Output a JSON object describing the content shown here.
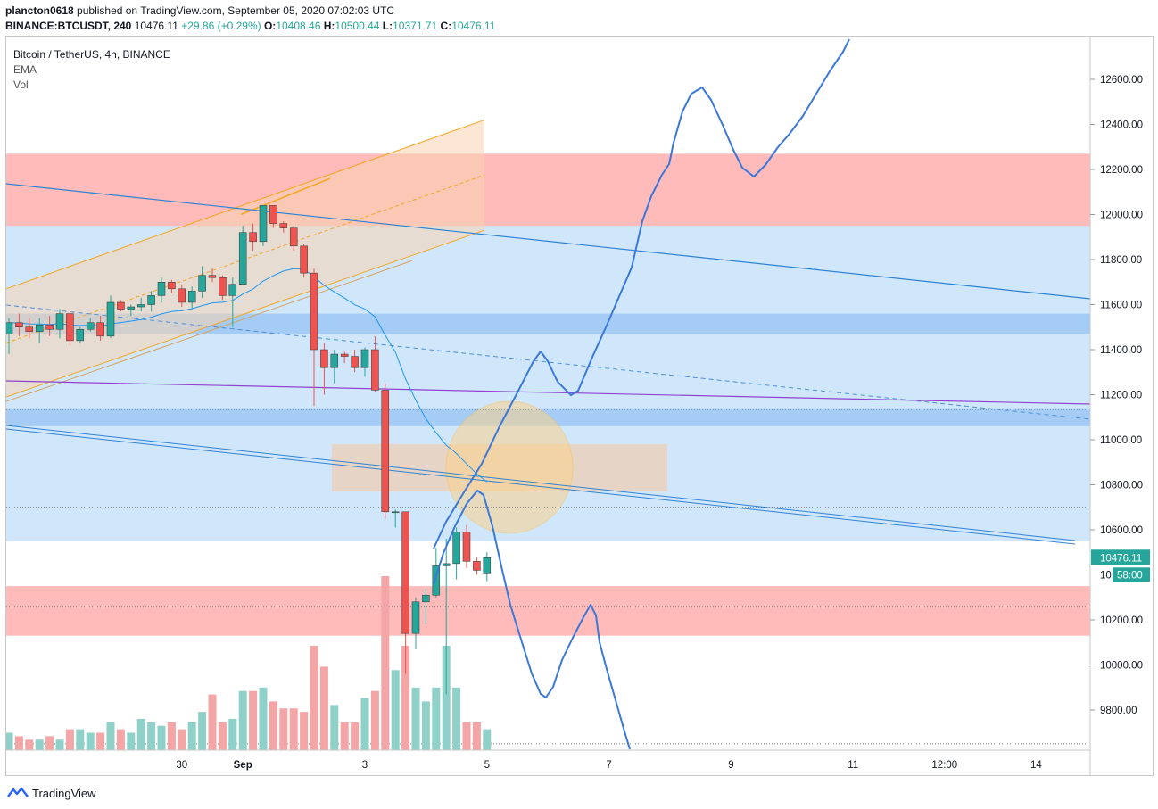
{
  "header": {
    "author": "plancton0618",
    "published": "published on TradingView.com, September 05, 2020 07:02:03 UTC",
    "symbol": "BINANCE:BTCUSDT, 240",
    "price": "10476.11",
    "change": "+29.86 (+0.29%)",
    "o_label": "O:",
    "o_value": "10408.46",
    "h_label": "H:",
    "h_value": "10500.44",
    "l_label": "L:",
    "l_value": "10371.71",
    "c_label": "C:",
    "c_value": "10476.11"
  },
  "legend": {
    "title": "Bitcoin / TetherUS, 4h, BINANCE",
    "ema": "EMA",
    "vol": "Vol"
  },
  "footer": {
    "brand": "TradingView",
    "logo_icon": "tradingview-logo-icon"
  },
  "colors": {
    "up": "#26a69a",
    "down": "#ef5350",
    "up_vol": "#8fd0c8",
    "down_vol": "#f4a6a6",
    "resistance_zone": "#ffb6b6",
    "blue_zone": "#cde6fb",
    "blue_band": "#9fc9f3",
    "channel": "#f5a623",
    "channel_fill": "#f8d3b0",
    "projection": "#3b78d8",
    "ema": "#2196f3",
    "purple": "#8e44cf",
    "circle": "#fcd38b",
    "price_tag": "#26a69a"
  },
  "chart_data": {
    "type": "candlestick",
    "symbol": "Bitcoin / TetherUS",
    "interval": "4h",
    "exchange": "BINANCE",
    "ylim": [
      9640,
      12760
    ],
    "y_ticks": [
      "12600.00",
      "12400.00",
      "12200.00",
      "12000.00",
      "11800.00",
      "11600.00",
      "11400.00",
      "11200.00",
      "11000.00",
      "10800.00",
      "10600.00",
      "10200.00",
      "10000.00",
      "9800.00"
    ],
    "x_ticks": [
      {
        "label": "30",
        "bar": 17.0
      },
      {
        "label": "Sep",
        "bar": 23.0
      },
      {
        "label": "3",
        "bar": 35.0
      },
      {
        "label": "5",
        "bar": 47.0
      },
      {
        "label": "7",
        "bar": 59.0
      },
      {
        "label": "9",
        "bar": 71.0
      },
      {
        "label": "11",
        "bar": 83.0
      },
      {
        "label": "12:00",
        "bar": 92.0
      },
      {
        "label": "14",
        "bar": 101.0
      }
    ],
    "last_price": "10476.11",
    "countdown": "58:00",
    "candles": [
      {
        "o": 11470,
        "h": 11540,
        "l": 11380,
        "c": 11520,
        "v": 5
      },
      {
        "o": 11520,
        "h": 11560,
        "l": 11460,
        "c": 11500,
        "v": 4
      },
      {
        "o": 11500,
        "h": 11540,
        "l": 11450,
        "c": 11480,
        "v": 3
      },
      {
        "o": 11480,
        "h": 11540,
        "l": 11430,
        "c": 11510,
        "v": 3
      },
      {
        "o": 11510,
        "h": 11550,
        "l": 11460,
        "c": 11490,
        "v": 4
      },
      {
        "o": 11490,
        "h": 11580,
        "l": 11450,
        "c": 11560,
        "v": 3
      },
      {
        "o": 11560,
        "h": 11570,
        "l": 11420,
        "c": 11440,
        "v": 6
      },
      {
        "o": 11440,
        "h": 11500,
        "l": 11430,
        "c": 11490,
        "v": 6
      },
      {
        "o": 11490,
        "h": 11540,
        "l": 11480,
        "c": 11520,
        "v": 5
      },
      {
        "o": 11520,
        "h": 11550,
        "l": 11440,
        "c": 11460,
        "v": 5
      },
      {
        "o": 11460,
        "h": 11640,
        "l": 11450,
        "c": 11610,
        "v": 8
      },
      {
        "o": 11610,
        "h": 11620,
        "l": 11570,
        "c": 11580,
        "v": 6
      },
      {
        "o": 11580,
        "h": 11600,
        "l": 11550,
        "c": 11590,
        "v": 5
      },
      {
        "o": 11590,
        "h": 11630,
        "l": 11570,
        "c": 11600,
        "v": 9
      },
      {
        "o": 11600,
        "h": 11660,
        "l": 11570,
        "c": 11640,
        "v": 8
      },
      {
        "o": 11640,
        "h": 11720,
        "l": 11610,
        "c": 11700,
        "v": 7
      },
      {
        "o": 11700,
        "h": 11710,
        "l": 11650,
        "c": 11670,
        "v": 8
      },
      {
        "o": 11670,
        "h": 11690,
        "l": 11590,
        "c": 11610,
        "v": 6
      },
      {
        "o": 11610,
        "h": 11680,
        "l": 11580,
        "c": 11660,
        "v": 8
      },
      {
        "o": 11660,
        "h": 11770,
        "l": 11630,
        "c": 11730,
        "v": 11
      },
      {
        "o": 11730,
        "h": 11760,
        "l": 11700,
        "c": 11720,
        "v": 16
      },
      {
        "o": 11720,
        "h": 11730,
        "l": 11620,
        "c": 11640,
        "v": 8
      },
      {
        "o": 11640,
        "h": 11720,
        "l": 11500,
        "c": 11690,
        "v": 9
      },
      {
        "o": 11690,
        "h": 11950,
        "l": 11690,
        "c": 11920,
        "v": 17
      },
      {
        "o": 11920,
        "h": 11960,
        "l": 11840,
        "c": 11880,
        "v": 17
      },
      {
        "o": 11880,
        "h": 12040,
        "l": 11860,
        "c": 12040,
        "v": 18
      },
      {
        "o": 12040,
        "h": 12040,
        "l": 11940,
        "c": 11960,
        "v": 14
      },
      {
        "o": 11960,
        "h": 11970,
        "l": 11920,
        "c": 11940,
        "v": 12
      },
      {
        "o": 11940,
        "h": 11950,
        "l": 11840,
        "c": 11860,
        "v": 12
      },
      {
        "o": 11860,
        "h": 11870,
        "l": 11720,
        "c": 11740,
        "v": 11
      },
      {
        "o": 11740,
        "h": 11760,
        "l": 11150,
        "c": 11400,
        "v": 30
      },
      {
        "o": 11400,
        "h": 11430,
        "l": 11200,
        "c": 11320,
        "v": 24
      },
      {
        "o": 11320,
        "h": 11400,
        "l": 11250,
        "c": 11380,
        "v": 13
      },
      {
        "o": 11380,
        "h": 11390,
        "l": 11340,
        "c": 11370,
        "v": 8
      },
      {
        "o": 11370,
        "h": 11400,
        "l": 11300,
        "c": 11320,
        "v": 8
      },
      {
        "o": 11320,
        "h": 11410,
        "l": 11280,
        "c": 11400,
        "v": 15
      },
      {
        "o": 11400,
        "h": 11460,
        "l": 11210,
        "c": 11220,
        "v": 17
      },
      {
        "o": 11220,
        "h": 11250,
        "l": 10650,
        "c": 10680,
        "v": 50
      },
      {
        "o": 10680,
        "h": 10690,
        "l": 10610,
        "c": 10680,
        "v": 23
      },
      {
        "o": 10680,
        "h": 10680,
        "l": 9960,
        "c": 10140,
        "v": 30
      },
      {
        "o": 10140,
        "h": 10300,
        "l": 10070,
        "c": 10280,
        "v": 18
      },
      {
        "o": 10280,
        "h": 10340,
        "l": 10180,
        "c": 10310,
        "v": 14
      },
      {
        "o": 10310,
        "h": 10520,
        "l": 10300,
        "c": 10440,
        "v": 18
      },
      {
        "o": 10440,
        "h": 10560,
        "l": 9870,
        "c": 10450,
        "v": 30
      },
      {
        "o": 10450,
        "h": 10610,
        "l": 10380,
        "c": 10590,
        "v": 18
      },
      {
        "o": 10590,
        "h": 10620,
        "l": 10430,
        "c": 10460,
        "v": 8
      },
      {
        "o": 10460,
        "h": 10480,
        "l": 10400,
        "c": 10420,
        "v": 8
      },
      {
        "o": 10408.46,
        "h": 10500.44,
        "l": 10371.71,
        "c": 10476.11,
        "v": 6
      }
    ],
    "drawings": {
      "resistance_zones": [
        [
          11950,
          12270
        ],
        [
          10130,
          10350
        ]
      ],
      "blue_bands": [
        [
          11470,
          11560
        ],
        [
          11060,
          11140
        ]
      ],
      "horizontal_dotted": [
        10700,
        10260,
        9650,
        11135
      ]
    }
  }
}
